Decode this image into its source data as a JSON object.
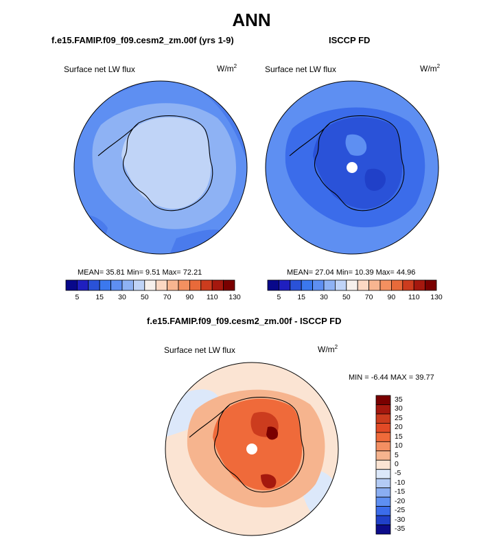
{
  "header": {
    "title": "ANN"
  },
  "panels": {
    "model": {
      "title": "f.e15.FAMIP.f09_f09.cesm2_zm.00f (yrs 1-9)",
      "var": "Surface net LW flux",
      "units_base": "W/m",
      "units_exp": "2",
      "stats": "MEAN=  35.81  Min=    9.51  Max=  72.21"
    },
    "obs": {
      "title": "ISCCP FD",
      "var": "Surface net LW flux",
      "units_base": "W/m",
      "units_exp": "2",
      "stats": "MEAN=  27.04  Min=  10.39  Max=  44.96"
    },
    "diff": {
      "title": "f.e15.FAMIP.f09_f09.cesm2_zm.00f - ISCCP FD",
      "var": "Surface net LW flux",
      "units_base": "W/m",
      "units_exp": "2",
      "stats": "MIN =  -6.44 MAX =  39.77"
    }
  },
  "chart_data": [
    {
      "type": "heatmap",
      "projection": "south-polar-stereographic",
      "title": "f.e15.FAMIP.f09_f09.cesm2_zm.00f (yrs 1-9)",
      "variable": "Surface net LW flux",
      "units": "W/m2",
      "mean": 35.81,
      "min": 9.51,
      "max": 72.21,
      "colorbar_ticks": [
        "5",
        "15",
        "30",
        "50",
        "70",
        "90",
        "110",
        "130"
      ],
      "colorbar_colors": [
        "#08088a",
        "#1f1fbf",
        "#2a52d8",
        "#3b78ee",
        "#5e8ff2",
        "#8eb2f4",
        "#c0d4f7",
        "#f6f0ec",
        "#fbd8c3",
        "#f8b590",
        "#f39060",
        "#e86a3a",
        "#cc3c1e",
        "#a5180e",
        "#7a0000"
      ]
    },
    {
      "type": "heatmap",
      "projection": "south-polar-stereographic",
      "title": "ISCCP FD",
      "variable": "Surface net LW flux",
      "units": "W/m2",
      "mean": 27.04,
      "min": 10.39,
      "max": 44.96,
      "colorbar_ticks": [
        "5",
        "15",
        "30",
        "50",
        "70",
        "90",
        "110",
        "130"
      ],
      "colorbar_colors": [
        "#08088a",
        "#1f1fbf",
        "#2a52d8",
        "#3b78ee",
        "#5e8ff2",
        "#8eb2f4",
        "#c0d4f7",
        "#f6f0ec",
        "#fbd8c3",
        "#f8b590",
        "#f39060",
        "#e86a3a",
        "#cc3c1e",
        "#a5180e",
        "#7a0000"
      ]
    },
    {
      "type": "heatmap",
      "projection": "south-polar-stereographic",
      "title": "f.e15.FAMIP.f09_f09.cesm2_zm.00f - ISCCP FD",
      "variable": "Surface net LW flux",
      "units": "W/m2",
      "min": -6.44,
      "max": 39.77,
      "colorbar_ticks": [
        "35",
        "30",
        "25",
        "20",
        "15",
        "10",
        "5",
        "0",
        "-5",
        "-10",
        "-15",
        "-20",
        "-25",
        "-30",
        "-35"
      ],
      "colorbar_colors": [
        "#7a0000",
        "#a5180e",
        "#cc3c1e",
        "#e24a26",
        "#ef6a3a",
        "#f38f62",
        "#f6b48e",
        "#fbe4d3",
        "#dce8fa",
        "#b3cbf5",
        "#8aaef2",
        "#5e8ff2",
        "#3b6cea",
        "#2040c8",
        "#0c0c8a"
      ]
    }
  ]
}
